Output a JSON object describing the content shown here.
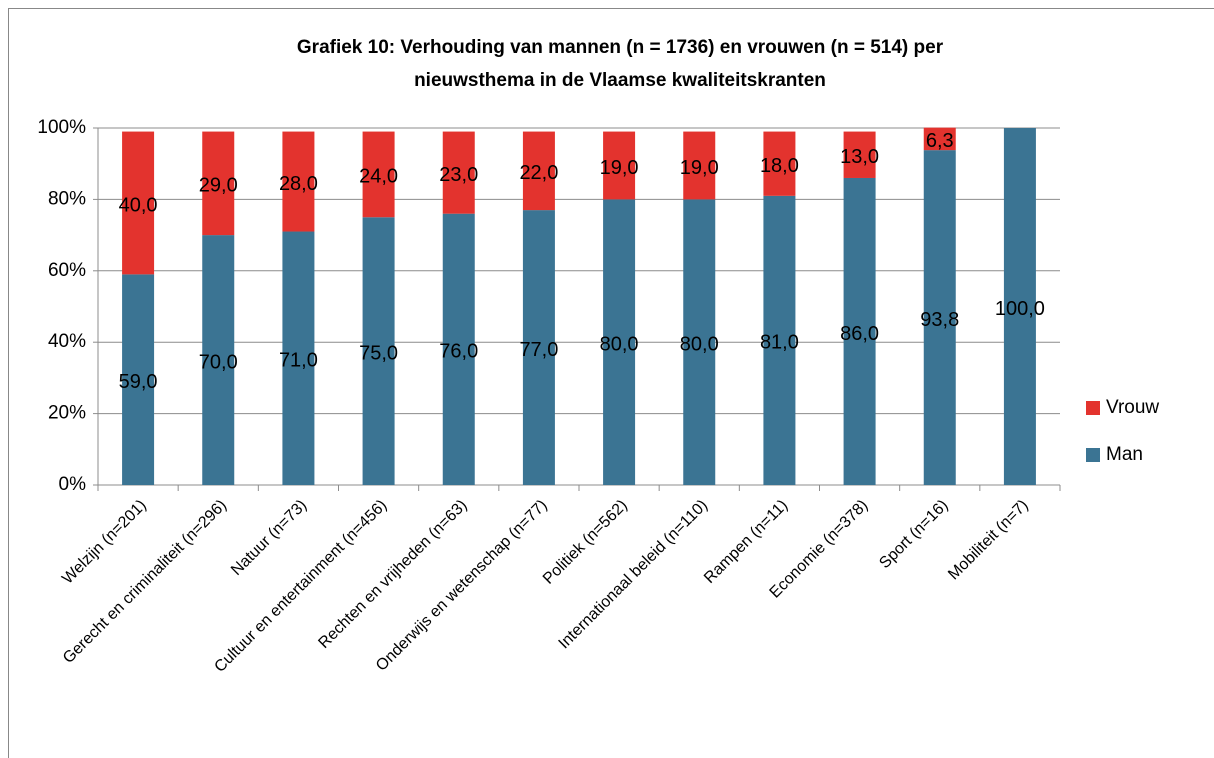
{
  "chart_data": {
    "type": "stacked_bar",
    "title": [
      "Grafiek 10: Verhouding van mannen (n = 1736) en vrouwen (n = 514) per",
      "nieuwsthema in de Vlaamse kwaliteitskranten"
    ],
    "categories": [
      "Welzijn (n=201)",
      "Gerecht en criminaliteit (n=296)",
      "Natuur (n=73)",
      "Cultuur en entertainment (n=456)",
      "Rechten en vrijheden (n=63)",
      "Onderwijs en wetenschap (n=77)",
      "Politiek (n=562)",
      "Internationaal beleid (n=110)",
      "Rampen (n=11)",
      "Economie (n=378)",
      "Sport (n=16)",
      "Mobiliteit (n=7)"
    ],
    "series": [
      {
        "name": "Man",
        "color": "#3b7493",
        "values": [
          59,
          70,
          71,
          75,
          76,
          77,
          80,
          80,
          81,
          86,
          93.8,
          100
        ],
        "value_labels": [
          "59,0",
          "70,0",
          "71,0",
          "75,0",
          "76,0",
          "77,0",
          "80,0",
          "80,0",
          "81,0",
          "86,0",
          "93,8",
          "100,0"
        ]
      },
      {
        "name": "Vrouw",
        "color": "#e3332e",
        "values": [
          40,
          29,
          28,
          24,
          23,
          22,
          19,
          19,
          18,
          13,
          6.3,
          null
        ],
        "value_labels": [
          "40,0",
          "29,0",
          "28,0",
          "24,0",
          "23,0",
          "22,0",
          "19,0",
          "19,0",
          "18,0",
          "13,0",
          "6,3",
          null
        ]
      }
    ],
    "ylim": [
      0,
      100
    ],
    "yticks": [
      {
        "value": 0,
        "label": "0%"
      },
      {
        "value": 20,
        "label": "20%"
      },
      {
        "value": 40,
        "label": "40%"
      },
      {
        "value": 60,
        "label": "60%"
      },
      {
        "value": 80,
        "label": "80%"
      },
      {
        "value": 100,
        "label": "100%"
      }
    ],
    "grid": true,
    "legend": "right"
  }
}
